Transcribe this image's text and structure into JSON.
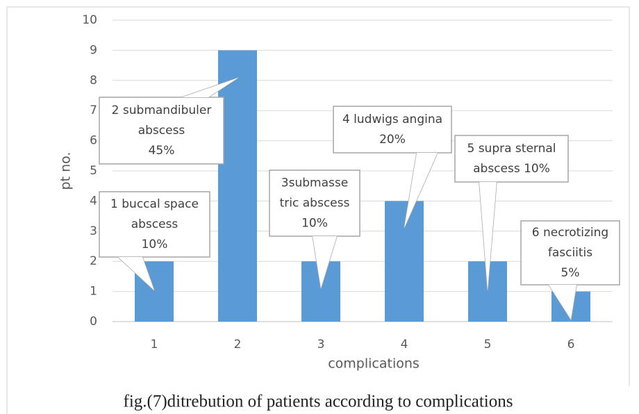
{
  "chart_data": {
    "type": "bar",
    "caption": "fig.(7)ditrebution of patients according to complications",
    "x_label": "complications",
    "y_label": "pt no.",
    "categories": [
      "1",
      "2",
      "3",
      "4",
      "5",
      "6"
    ],
    "values": [
      2,
      9,
      2,
      4,
      2,
      1
    ],
    "color": "#5b9bd5",
    "ylim": [
      0,
      10
    ],
    "yticks": [
      0,
      1,
      2,
      3,
      4,
      5,
      6,
      7,
      8,
      9,
      10
    ],
    "grid": true,
    "annotations": [
      {
        "lines": [
          "1 buccal space",
          "abscess",
          "10%"
        ]
      },
      {
        "lines": [
          "2 submandibuler",
          "abscess",
          "45%"
        ]
      },
      {
        "lines": [
          "3submasse",
          "tric abscess",
          "10%"
        ]
      },
      {
        "lines": [
          "4 ludwigs angina",
          "20%"
        ]
      },
      {
        "lines": [
          "5 supra sternal",
          "abscess 10%"
        ]
      },
      {
        "lines": [
          "6 necrotizing",
          "fasciitis",
          "5%"
        ]
      }
    ]
  }
}
